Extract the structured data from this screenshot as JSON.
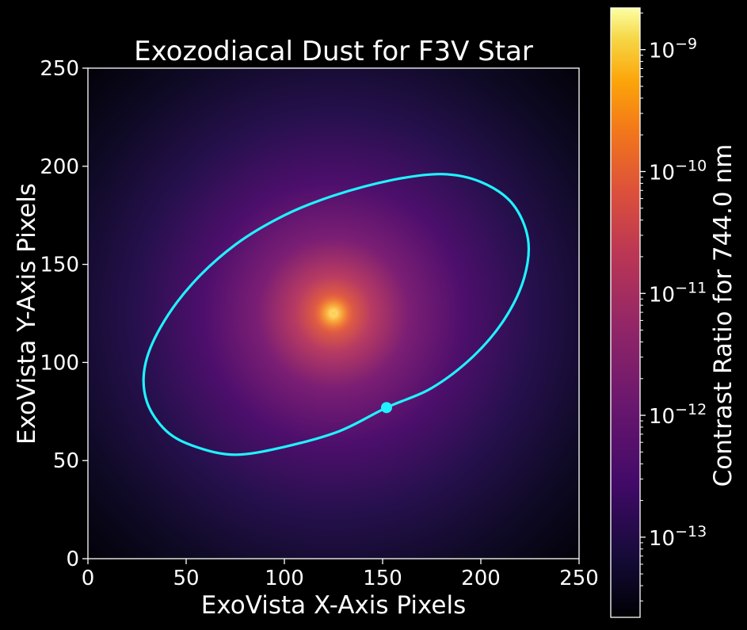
{
  "chart_data": {
    "type": "heatmap",
    "title": "Exozodiacal Dust for F3V Star",
    "xlabel": "ExoVista X-Axis Pixels",
    "ylabel": "ExoVista Y-Axis Pixels",
    "xlim": [
      0,
      250
    ],
    "ylim": [
      0,
      250
    ],
    "xticks": [
      0,
      50,
      100,
      150,
      200,
      250
    ],
    "yticks": [
      0,
      50,
      100,
      150,
      200,
      250
    ],
    "grid": false,
    "colormap": "inferno",
    "background": "#000000",
    "star": {
      "x": 125,
      "y": 125,
      "color": "#ffd24a"
    },
    "orbit": {
      "color": "#1ff3ff",
      "points": [
        [
          152,
          77
        ],
        [
          175,
          87
        ],
        [
          196,
          103
        ],
        [
          212,
          122
        ],
        [
          222,
          143
        ],
        [
          224,
          163
        ],
        [
          216,
          181
        ],
        [
          200,
          192
        ],
        [
          180,
          196
        ],
        [
          155,
          193
        ],
        [
          125,
          185
        ],
        [
          100,
          175
        ],
        [
          75,
          160
        ],
        [
          53,
          140
        ],
        [
          37,
          118
        ],
        [
          29,
          98
        ],
        [
          30,
          80
        ],
        [
          40,
          65
        ],
        [
          55,
          57
        ],
        [
          75,
          53
        ],
        [
          100,
          57
        ],
        [
          128,
          65
        ],
        [
          152,
          77
        ]
      ],
      "planet": {
        "x": 152,
        "y": 77
      }
    },
    "colorbar": {
      "label": "Contrast Ratio for 744.0 nm",
      "scale": "log",
      "range": [
        2.2e-14,
        2.2e-09
      ],
      "ticks": [
        {
          "value": 1e-13,
          "base": "10",
          "exp": "−13"
        },
        {
          "value": 1e-12,
          "base": "10",
          "exp": "−12"
        },
        {
          "value": 1e-11,
          "base": "10",
          "exp": "−11"
        },
        {
          "value": 1e-10,
          "base": "10",
          "exp": "−10"
        },
        {
          "value": 1e-09,
          "base": "10",
          "exp": "−9"
        }
      ]
    }
  }
}
